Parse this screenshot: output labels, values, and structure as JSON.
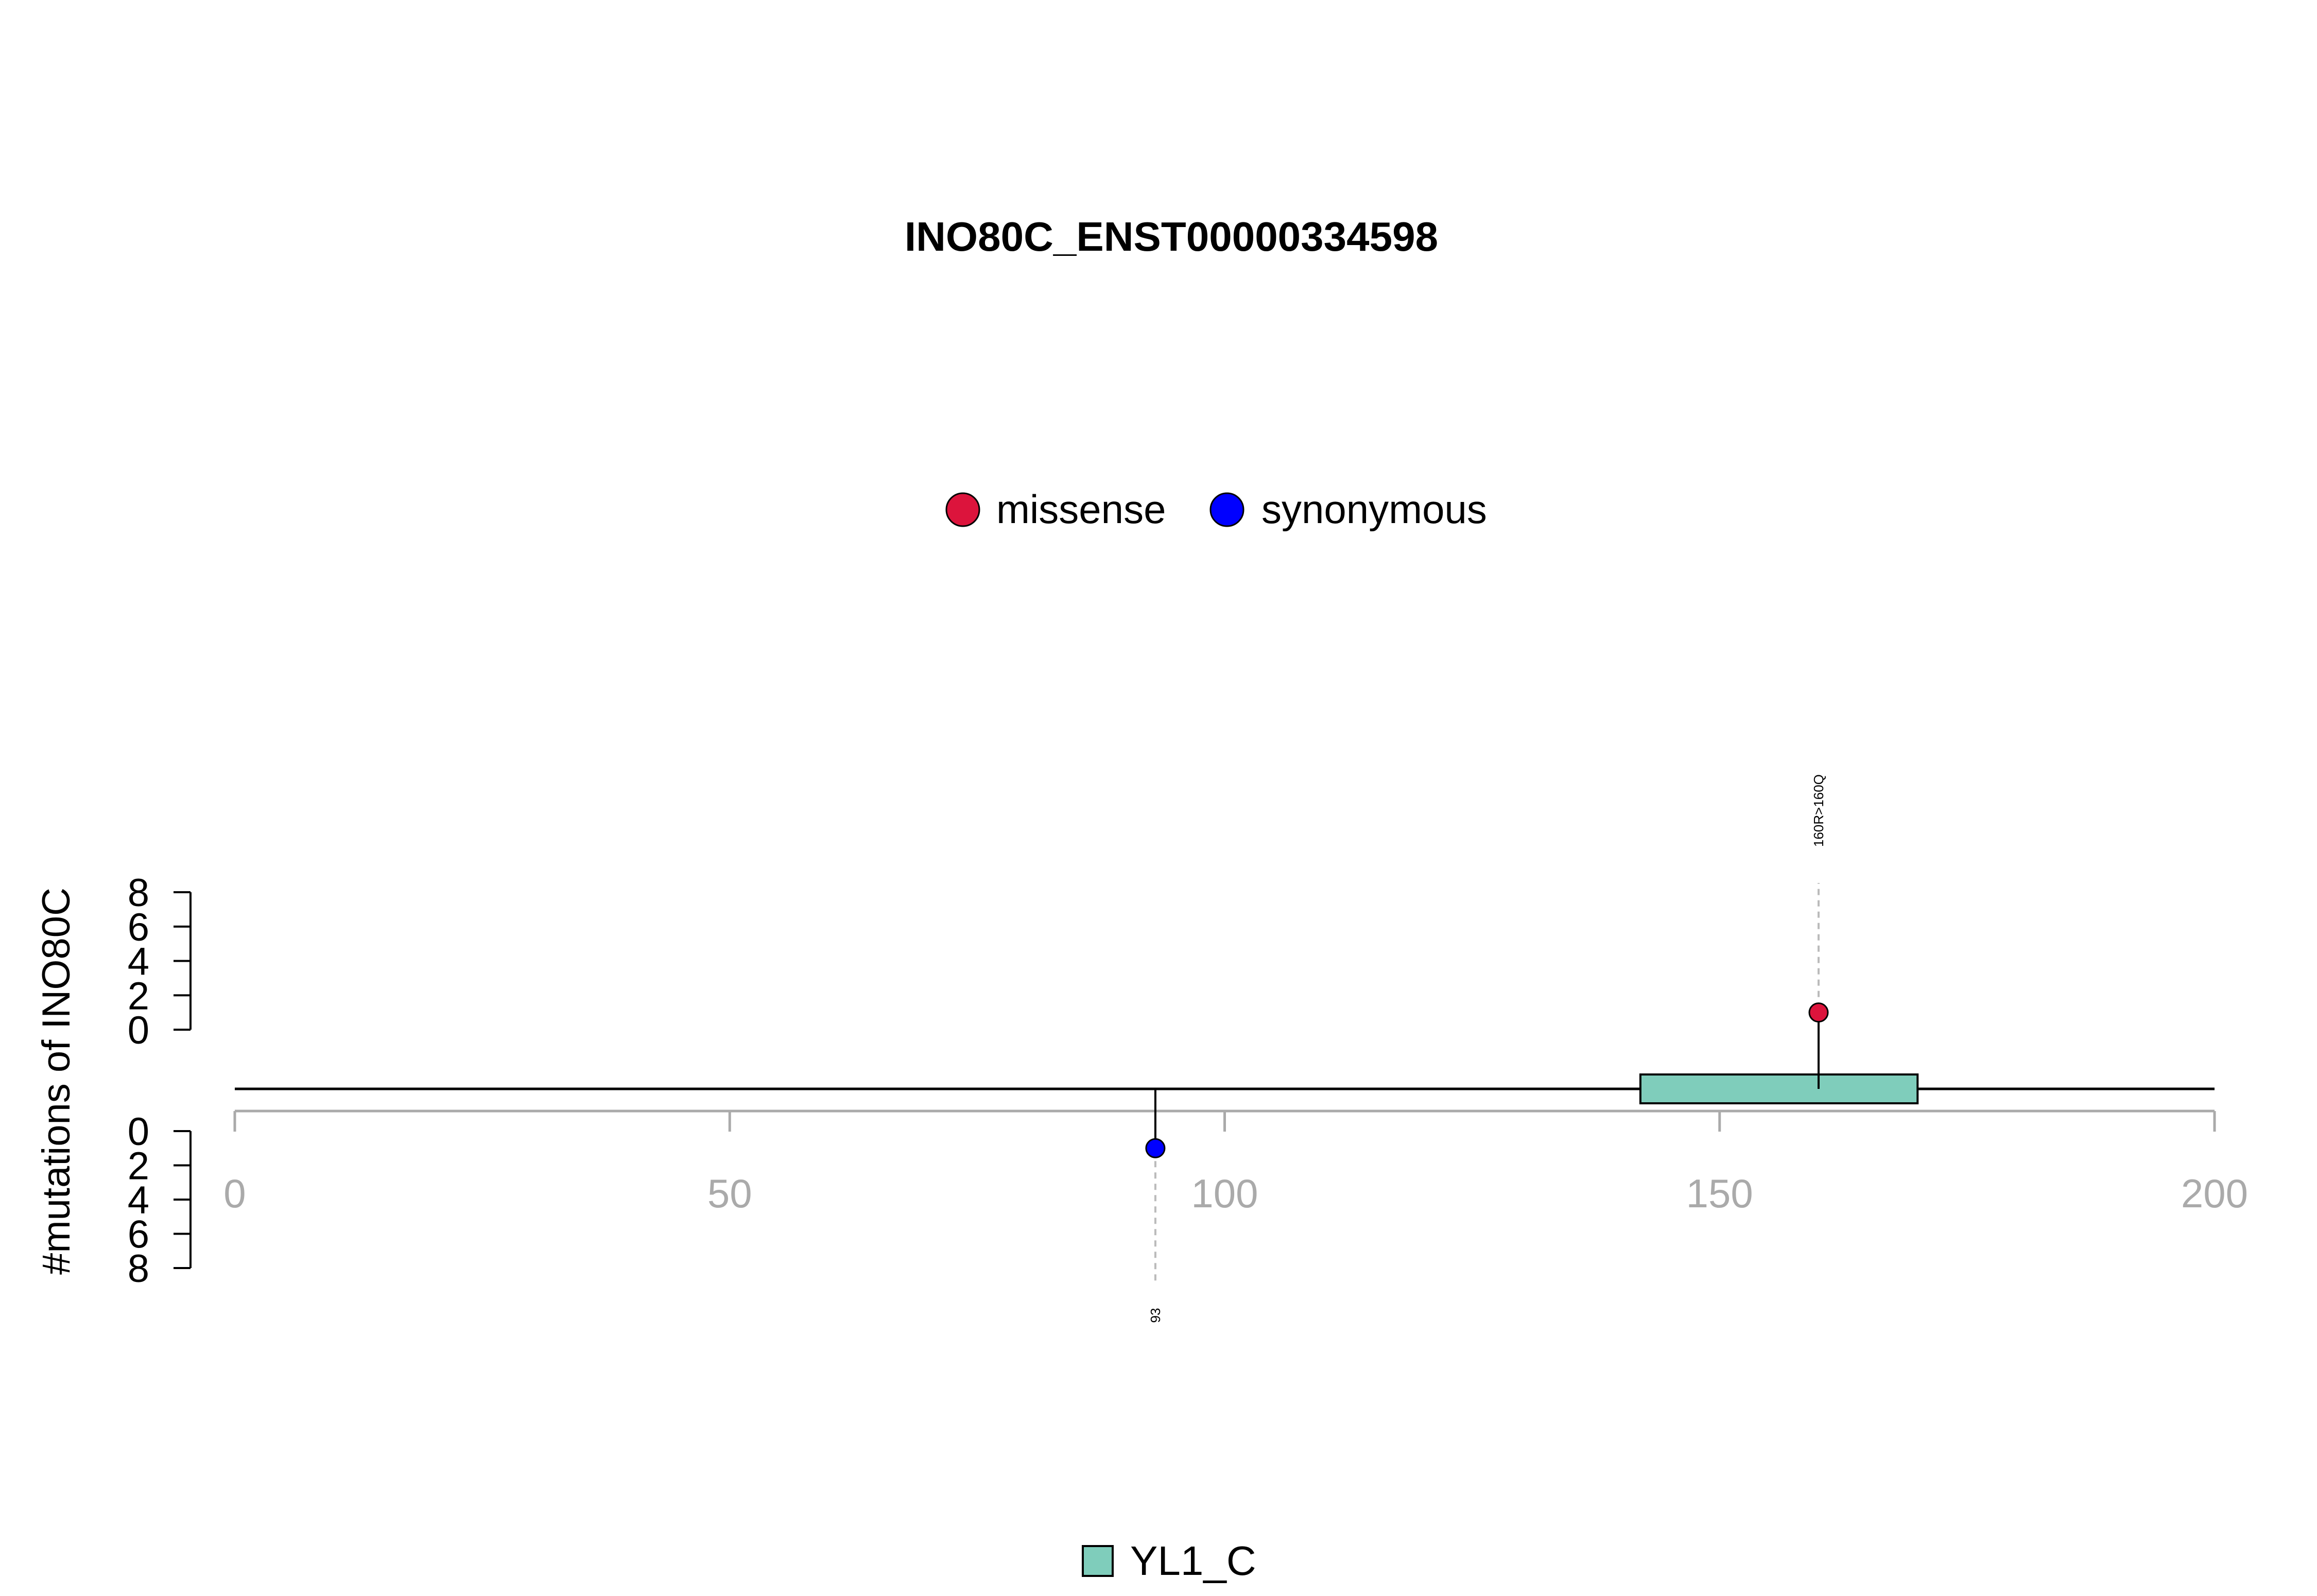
{
  "chart_data": {
    "type": "scatter",
    "title": "INO80C_ENST00000334598",
    "ylabel": "#mutations of INO80C",
    "xlim": [
      0,
      200
    ],
    "x_ticks": [
      0,
      50,
      100,
      150,
      200
    ],
    "y_ticks_upper": [
      0,
      2,
      4,
      6,
      8
    ],
    "y_ticks_lower": [
      0,
      2,
      4,
      6,
      8
    ],
    "ylim": [
      0,
      8
    ],
    "legend": {
      "position": "top-center",
      "items": [
        {
          "label": "missense",
          "color": "#DC143C"
        },
        {
          "label": "synonymous",
          "color": "#0000FF"
        }
      ]
    },
    "mutations": [
      {
        "position": 160,
        "label": "160R>160Q",
        "type": "missense",
        "count": 1,
        "strand": "upper",
        "color": "#DC143C"
      },
      {
        "position": 93,
        "label": "93",
        "type": "synonymous",
        "count": 1,
        "strand": "lower",
        "color": "#0000FF"
      }
    ],
    "domains": [
      {
        "name": "YL1_C",
        "start": 142,
        "end": 170,
        "color": "#7FCDBB"
      }
    ],
    "domain_legend": {
      "position": "bottom-center",
      "items": [
        {
          "label": "YL1_C",
          "color": "#7FCDBB"
        }
      ]
    }
  }
}
